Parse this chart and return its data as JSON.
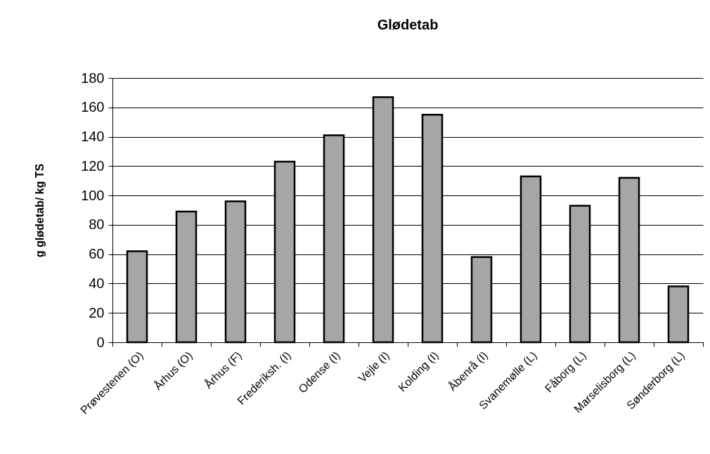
{
  "chart_data": {
    "type": "bar",
    "title": "Glødetab",
    "ylabel": "g glødetab/ kg TS",
    "categories": [
      "Prøvestenen (O)",
      "Århus (O)",
      "Århus (F)",
      "Frederiksh. (I)",
      "Odense (I)",
      "Vejle (I)",
      "Kolding (I)",
      "Åbenrå (I)",
      "Svanemølle (L)",
      "Fåborg (L)",
      "Marselisborg (L)",
      "Sønderborg (L)"
    ],
    "values": [
      62,
      89,
      96,
      123,
      141,
      167,
      155,
      58,
      113,
      93,
      112,
      38
    ],
    "color": "#a6a6a6",
    "ylim": [
      0,
      180
    ],
    "yticks": [
      0,
      20,
      40,
      60,
      80,
      100,
      120,
      140,
      160,
      180
    ],
    "grid": "y"
  }
}
